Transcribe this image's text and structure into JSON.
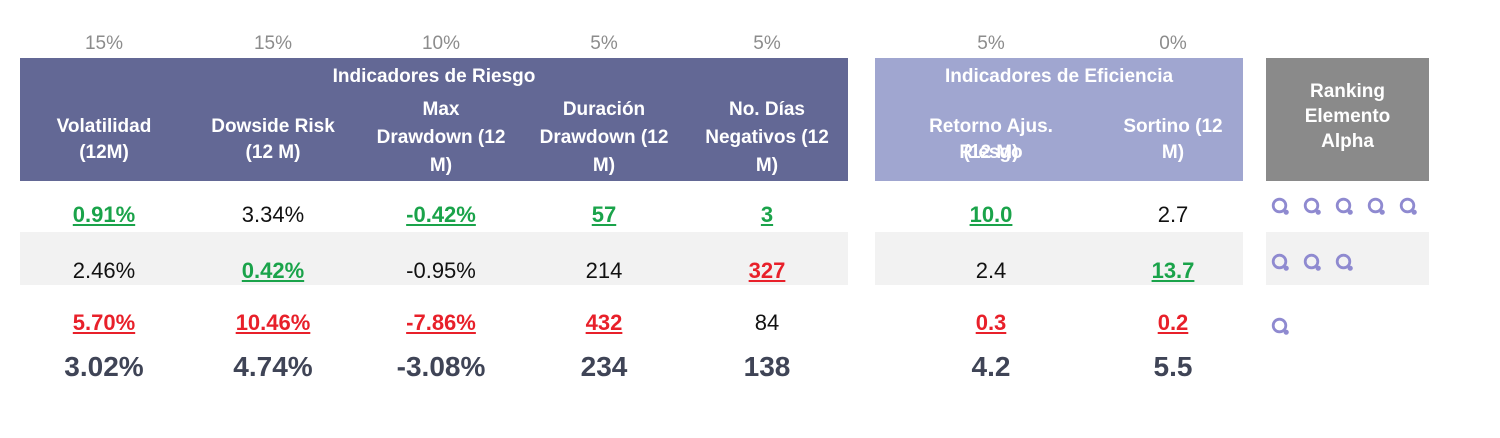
{
  "weights": [
    "15%",
    "15%",
    "10%",
    "5%",
    "5%",
    "5%",
    "0%"
  ],
  "groups": {
    "risk_title": "Indicadores de Riesgo",
    "efficiency_title": "Indicadores de Eficiencia",
    "ranking_title": [
      "Ranking",
      "Elemento",
      "Alpha"
    ]
  },
  "columns": [
    {
      "lines": [
        "Volatilidad",
        "(12M)"
      ]
    },
    {
      "lines": [
        "Dowside Risk",
        "(12 M)"
      ]
    },
    {
      "lines": [
        "Max",
        "Drawdown (12",
        "M)"
      ]
    },
    {
      "lines": [
        "Duración",
        "Drawdown (12",
        "M)"
      ]
    },
    {
      "lines": [
        "No. Días",
        "Negativos (12",
        "M)"
      ]
    },
    {
      "lines": [
        "Retorno Ajus. Riesgo",
        "(12 M)"
      ]
    },
    {
      "lines": [
        "Sortino (12",
        "M)"
      ]
    }
  ],
  "rows": [
    {
      "cells": [
        {
          "value": "0.91%",
          "status": "good"
        },
        {
          "value": "3.34%",
          "status": "neutral"
        },
        {
          "value": "-0.42%",
          "status": "good"
        },
        {
          "value": "57",
          "status": "good"
        },
        {
          "value": "3",
          "status": "good"
        },
        {
          "value": "10.0",
          "status": "good"
        },
        {
          "value": "2.7",
          "status": "neutral"
        }
      ],
      "rank_icons": 5
    },
    {
      "cells": [
        {
          "value": "2.46%",
          "status": "neutral"
        },
        {
          "value": "0.42%",
          "status": "good"
        },
        {
          "value": "-0.95%",
          "status": "neutral"
        },
        {
          "value": "214",
          "status": "neutral"
        },
        {
          "value": "327",
          "status": "bad"
        },
        {
          "value": "2.4",
          "status": "neutral"
        },
        {
          "value": "13.7",
          "status": "good"
        }
      ],
      "rank_icons": 3
    },
    {
      "cells": [
        {
          "value": "5.70%",
          "status": "bad"
        },
        {
          "value": "10.46%",
          "status": "bad"
        },
        {
          "value": "-7.86%",
          "status": "bad"
        },
        {
          "value": "432",
          "status": "bad"
        },
        {
          "value": "84",
          "status": "neutral"
        },
        {
          "value": "0.3",
          "status": "bad"
        },
        {
          "value": "0.2",
          "status": "bad"
        }
      ],
      "rank_icons": 1
    }
  ],
  "averages": [
    "3.02%",
    "4.74%",
    "-3.08%",
    "234",
    "138",
    "4.2",
    "5.5"
  ],
  "colors": {
    "risk_header": "#636895",
    "efficiency_header": "#a0a6d0",
    "ranking_header": "#8a8a8a",
    "good": "#1aa34a",
    "bad": "#e8202a",
    "icon": "#8f8ad0"
  },
  "icon_name": "alpha-ring-icon"
}
